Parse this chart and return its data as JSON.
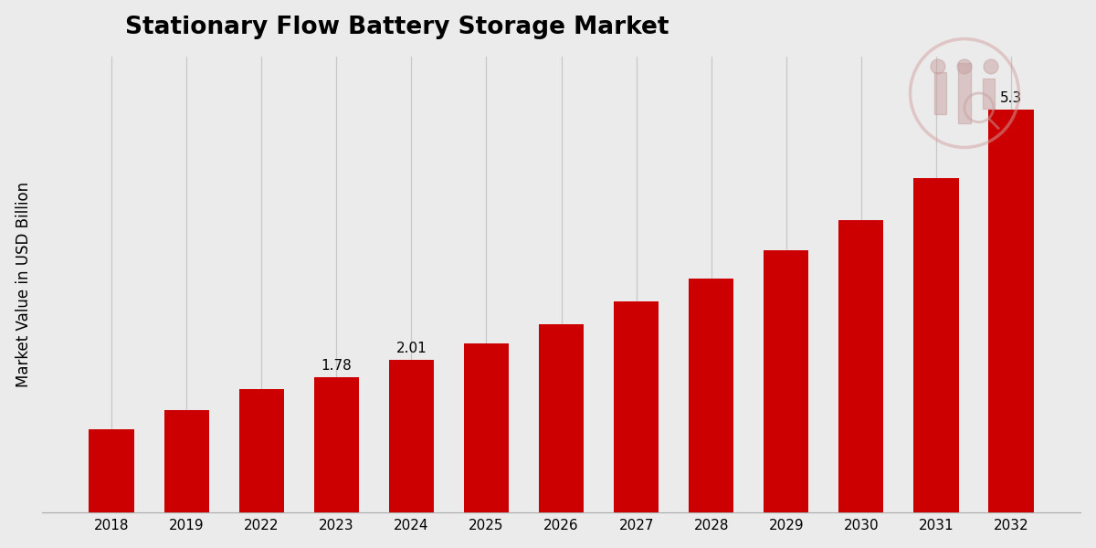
{
  "title": "Stationary Flow Battery Storage Market",
  "ylabel": "Market Value in USD Billion",
  "categories": [
    "2018",
    "2019",
    "2022",
    "2023",
    "2024",
    "2025",
    "2026",
    "2027",
    "2028",
    "2029",
    "2030",
    "2031",
    "2032"
  ],
  "values": [
    1.1,
    1.35,
    1.62,
    1.78,
    2.01,
    2.22,
    2.48,
    2.78,
    3.08,
    3.45,
    3.85,
    4.4,
    5.3
  ],
  "bar_color": "#cc0000",
  "background_color": "#ebebeb",
  "grid_color": "#c8c8c8",
  "label_values": {
    "2023": "1.78",
    "2024": "2.01",
    "2032": "5.3"
  },
  "ylim": [
    0,
    6.0
  ],
  "title_fontsize": 19,
  "ylabel_fontsize": 12,
  "tick_fontsize": 11,
  "bar_width": 0.6
}
